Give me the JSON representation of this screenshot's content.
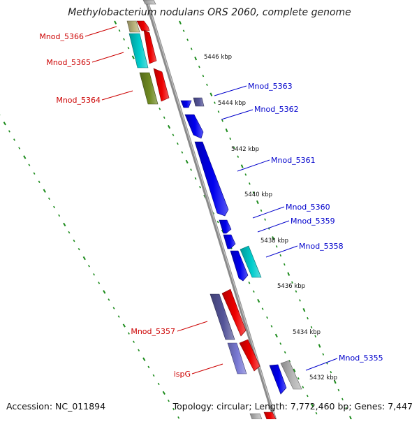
{
  "title": "Methylobacterium nodulans ORS 2060, complete genome",
  "footer": {
    "accession": "Accession: NC_011894",
    "summary": "Topology: circular; Length: 7,772,460 bp; Genes: 7,447"
  },
  "colors": {
    "backbone": "#8a8a8a",
    "scale_dots": "#1a8a1a",
    "forward_label": "#0000cc",
    "reverse_label": "#cc0000",
    "blue_gene": "#0000ee",
    "red_gene": "#ee0000",
    "cyan_gene": "#00cccc",
    "purple_gene": "#555599",
    "gray_gene": "#b5b5b5",
    "olive_gene": "#6f8a22",
    "khaki_gene": "#b9b27a",
    "lavender_gene": "#7b7bd6"
  },
  "scale_labels": [
    "5446 kbp",
    "5444 kbp",
    "5442 kbp",
    "5440 kbp",
    "5438 kbp",
    "5436 kbp",
    "5434 kbp",
    "5432 kbp"
  ],
  "gene_labels": {
    "forward": [
      "Mnod_5363",
      "Mnod_5362",
      "Mnod_5361",
      "Mnod_5360",
      "Mnod_5359",
      "Mnod_5358",
      "Mnod_5355"
    ],
    "reverse": [
      "Mnod_5366",
      "Mnod_5365",
      "Mnod_5364",
      "Mnod_5357",
      "ispG"
    ]
  }
}
